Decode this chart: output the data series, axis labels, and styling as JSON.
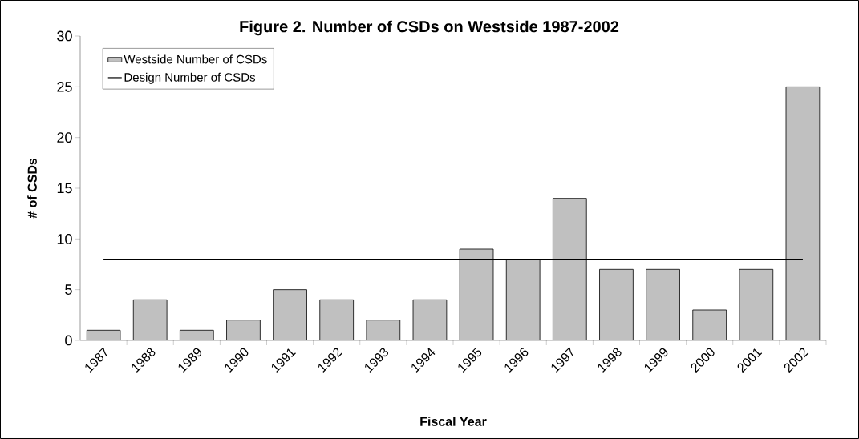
{
  "chart_data": {
    "type": "bar",
    "title": "Figure 2.  Number of CSDs on Westside 1987-2002",
    "xlabel": "Fiscal Year",
    "ylabel": "# of CSDs",
    "categories": [
      "1987",
      "1988",
      "1989",
      "1990",
      "1991",
      "1992",
      "1993",
      "1994",
      "1995",
      "1996",
      "1997",
      "1998",
      "1999",
      "2000",
      "2001",
      "2002"
    ],
    "series": [
      {
        "name": "Westside Number of CSDs",
        "color": "#c0c0c0",
        "values": [
          1,
          4,
          1,
          2,
          5,
          4,
          2,
          4,
          9,
          8,
          14,
          7,
          7,
          3,
          7,
          25
        ]
      },
      {
        "name": "Design Number of CSDs",
        "type": "line",
        "marker": "none",
        "color": "#000000",
        "values": [
          8,
          8,
          8,
          8,
          8,
          8,
          8,
          8,
          8,
          8,
          8,
          8,
          8,
          8,
          8,
          8
        ]
      }
    ],
    "ylim": [
      0,
      30
    ],
    "yticks": [
      0,
      5,
      10,
      15,
      20,
      25,
      30
    ],
    "legend": "top left",
    "grid": false
  }
}
